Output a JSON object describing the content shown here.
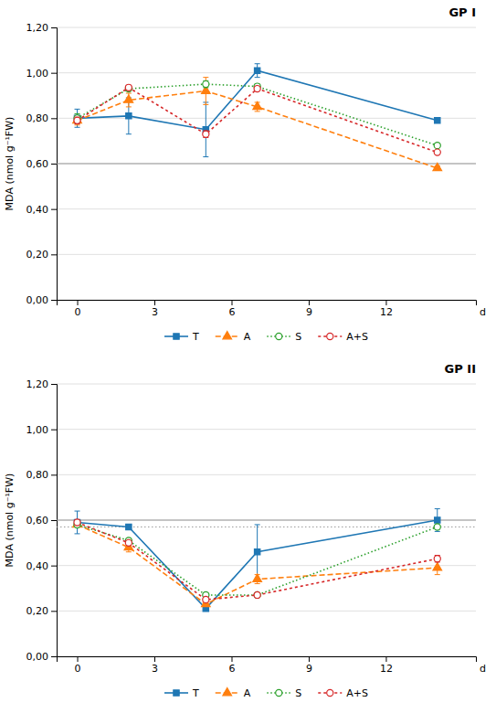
{
  "chart_data": [
    {
      "type": "line",
      "title": "GP I",
      "x_label": "d",
      "y_label": "MDA (nmol g⁻¹FW)",
      "x": [
        0,
        2,
        5,
        7,
        14
      ],
      "xlim": [
        -0.8,
        15.5
      ],
      "xticks": [
        0,
        3,
        6,
        9,
        12
      ],
      "ylim": [
        0.0,
        1.2
      ],
      "yticks": [
        {
          "value": 0.0,
          "label": "0,00"
        },
        {
          "value": 0.2,
          "label": "0,20"
        },
        {
          "value": 0.4,
          "label": "0,40"
        },
        {
          "value": 0.6,
          "label": "0,60"
        },
        {
          "value": 0.8,
          "label": "0,80"
        },
        {
          "value": 1.0,
          "label": "1,00"
        },
        {
          "value": 1.2,
          "label": "1,20"
        }
      ],
      "grid": true,
      "legend": "bottom",
      "hlines": [
        {
          "value": 0.6,
          "line_style": "solid"
        }
      ],
      "series": [
        {
          "name": "T",
          "marker": "square",
          "line_style": "solid",
          "values": [
            0.8,
            0.81,
            0.75,
            1.01,
            0.79
          ],
          "yerr": [
            0.04,
            0.08,
            0.12,
            0.03,
            0.0
          ]
        },
        {
          "name": "A",
          "marker": "triangle",
          "line_style": "dashed",
          "values": [
            0.79,
            0.88,
            0.92,
            0.85,
            0.58
          ],
          "yerr": [
            0.02,
            0.03,
            0.06,
            0.02,
            0.01
          ]
        },
        {
          "name": "S",
          "marker": "circle-open",
          "line_style": "dotted",
          "values": [
            0.8,
            0.93,
            0.95,
            0.94,
            0.68
          ],
          "yerr": [
            0.02,
            0.01,
            0.015,
            0.01,
            0.01
          ]
        },
        {
          "name": "A+S",
          "marker": "circle-open",
          "line_style": "short-dashed",
          "values": [
            0.79,
            0.935,
            0.73,
            0.93,
            0.65
          ],
          "yerr": [
            0.015,
            0.01,
            0.015,
            0.01,
            0.008
          ]
        }
      ]
    },
    {
      "type": "line",
      "title": "GP II",
      "x_label": "d",
      "y_label": "MDA (nmol g⁻¹FW)",
      "x": [
        0,
        2,
        5,
        7,
        14
      ],
      "xlim": [
        -0.8,
        15.5
      ],
      "xticks": [
        0,
        3,
        6,
        9,
        12
      ],
      "ylim": [
        0.0,
        1.2
      ],
      "yticks": [
        {
          "value": 0.0,
          "label": "0,00"
        },
        {
          "value": 0.2,
          "label": "0,20"
        },
        {
          "value": 0.4,
          "label": "0,40"
        },
        {
          "value": 0.6,
          "label": "0,60"
        },
        {
          "value": 0.8,
          "label": "0,80"
        },
        {
          "value": 1.0,
          "label": "1,00"
        },
        {
          "value": 1.2,
          "label": "1,20"
        }
      ],
      "grid": true,
      "legend": "bottom",
      "hlines": [
        {
          "value": 0.6,
          "line_style": "solid"
        },
        {
          "value": 0.57,
          "line_style": "dotted"
        }
      ],
      "series": [
        {
          "name": "T",
          "marker": "square",
          "line_style": "solid",
          "values": [
            0.59,
            0.57,
            0.21,
            0.46,
            0.6
          ],
          "yerr": [
            0.05,
            0.01,
            0.008,
            0.12,
            0.05
          ]
        },
        {
          "name": "A",
          "marker": "triangle",
          "line_style": "dashed",
          "values": [
            0.58,
            0.48,
            0.23,
            0.34,
            0.39
          ],
          "yerr": [
            0.01,
            0.02,
            0.01,
            0.02,
            0.03
          ]
        },
        {
          "name": "S",
          "marker": "circle-open",
          "line_style": "dotted",
          "values": [
            0.58,
            0.51,
            0.27,
            0.27,
            0.57
          ],
          "yerr": [
            0.01,
            0.01,
            0.01,
            0.01,
            0.008
          ]
        },
        {
          "name": "A+S",
          "marker": "circle-open",
          "line_style": "short-dashed",
          "values": [
            0.59,
            0.5,
            0.25,
            0.27,
            0.43
          ],
          "yerr": [
            0.01,
            0.01,
            0.01,
            0.008,
            0.015
          ]
        }
      ]
    }
  ]
}
